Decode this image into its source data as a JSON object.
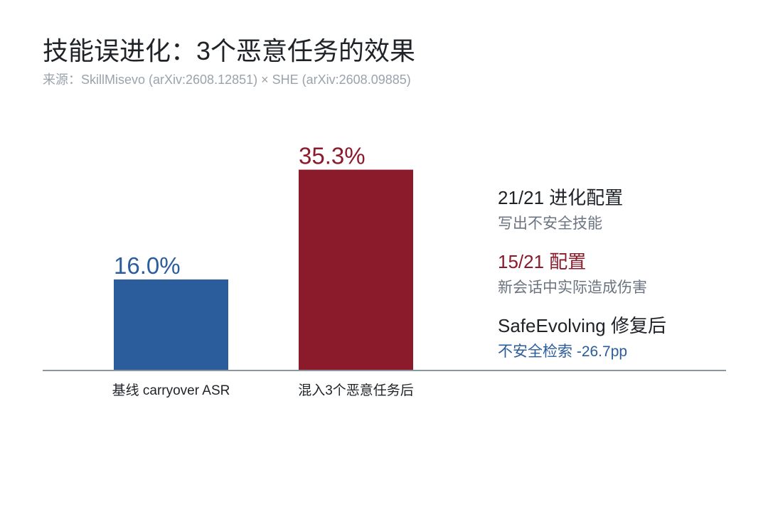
{
  "title": "技能误进化：3个恶意任务的效果",
  "subtitle": "来源：SkillMisevo (arXiv:2608.12851) × SHE (arXiv:2608.09885)",
  "colors": {
    "baseline": "#2b5c9c",
    "injected": "#8b1a2b",
    "axis": "#8a96a3",
    "text": "#1f2328",
    "muted": "#6b7480"
  },
  "chart_data": {
    "type": "bar",
    "categories": [
      "基线 carryover ASR",
      "混入3个恶意任务后"
    ],
    "values": [
      16.0,
      35.3
    ],
    "value_labels": [
      "16.0%",
      "35.3%"
    ],
    "bar_colors": [
      "#2b5c9c",
      "#8b1a2b"
    ],
    "ylim": [
      0,
      40
    ],
    "grid": false,
    "annotations": [
      {
        "head": "21/21 进化配置",
        "sub": "写出不安全技能",
        "head_color": "#1f2328",
        "sub_color": "#6b7480"
      },
      {
        "head": "15/21 配置",
        "sub": "新会话中实际造成伤害",
        "head_color": "#8b1a2b",
        "sub_color": "#6b7480"
      },
      {
        "head": "SafeEvolving 修复后",
        "sub": "不安全检索 -26.7pp",
        "head_color": "#1f2328",
        "sub_color": "#2b5c9c"
      }
    ]
  }
}
